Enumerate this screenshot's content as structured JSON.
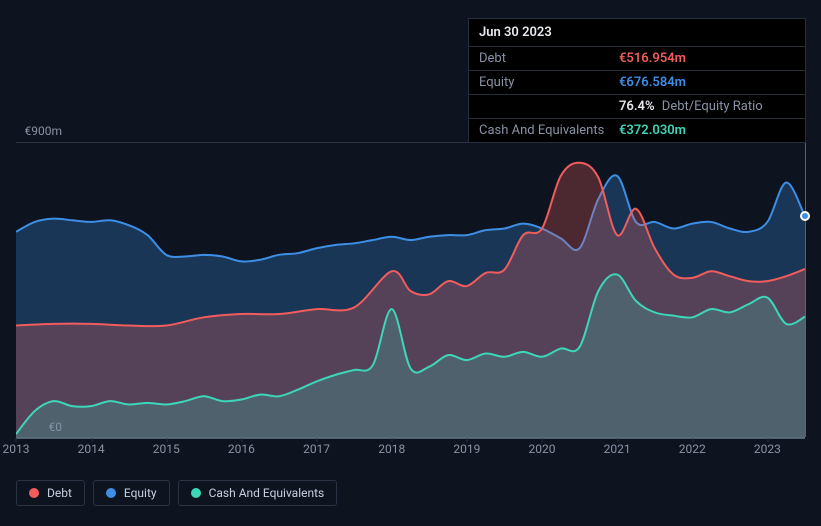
{
  "tooltip": {
    "date": "Jun 30 2023",
    "rows": [
      {
        "label": "Debt",
        "value": "€516.954m",
        "cls": "debt"
      },
      {
        "label": "Equity",
        "value": "€676.584m",
        "cls": "equity"
      },
      {
        "label": "",
        "value": "76.4%",
        "cls": "ratio",
        "suffix": "Debt/Equity Ratio"
      },
      {
        "label": "Cash And Equivalents",
        "value": "€372.030m",
        "cls": "cash"
      }
    ]
  },
  "chart": {
    "type": "area",
    "background_color": "#0d1420",
    "grid_color": "#2a3244",
    "ylim": [
      0,
      900
    ],
    "y_ticks": [
      {
        "v": 900,
        "label": "€900m"
      },
      {
        "v": 0,
        "label": "€0"
      }
    ],
    "x_years": [
      2013,
      2014,
      2015,
      2016,
      2017,
      2018,
      2019,
      2020,
      2021,
      2022,
      2023
    ],
    "x_range": [
      2013,
      2023.5
    ],
    "hover_x": 2023.5,
    "hover_dot": {
      "series": "equity",
      "y": 676.584
    },
    "series": [
      {
        "key": "equity",
        "label": "Equity",
        "color": "#3d8fe6",
        "fill_opacity": 0.28,
        "points": [
          [
            2013,
            630
          ],
          [
            2013.25,
            660
          ],
          [
            2013.5,
            670
          ],
          [
            2013.75,
            665
          ],
          [
            2014,
            660
          ],
          [
            2014.25,
            665
          ],
          [
            2014.5,
            650
          ],
          [
            2014.75,
            620
          ],
          [
            2015,
            560
          ],
          [
            2015.25,
            555
          ],
          [
            2015.5,
            560
          ],
          [
            2015.75,
            555
          ],
          [
            2016,
            540
          ],
          [
            2016.25,
            545
          ],
          [
            2016.5,
            560
          ],
          [
            2016.75,
            565
          ],
          [
            2017,
            580
          ],
          [
            2017.25,
            590
          ],
          [
            2017.5,
            595
          ],
          [
            2017.75,
            605
          ],
          [
            2018,
            615
          ],
          [
            2018.25,
            605
          ],
          [
            2018.5,
            615
          ],
          [
            2018.75,
            620
          ],
          [
            2019,
            620
          ],
          [
            2019.25,
            635
          ],
          [
            2019.5,
            640
          ],
          [
            2019.75,
            655
          ],
          [
            2020,
            640
          ],
          [
            2020.25,
            610
          ],
          [
            2020.5,
            580
          ],
          [
            2020.75,
            730
          ],
          [
            2021,
            800
          ],
          [
            2021.25,
            660
          ],
          [
            2021.5,
            660
          ],
          [
            2021.75,
            640
          ],
          [
            2022,
            655
          ],
          [
            2022.25,
            660
          ],
          [
            2022.5,
            640
          ],
          [
            2022.75,
            630
          ],
          [
            2023,
            660
          ],
          [
            2023.25,
            780
          ],
          [
            2023.5,
            676.584
          ]
        ]
      },
      {
        "key": "debt",
        "label": "Debt",
        "color": "#f15c5c",
        "fill_opacity": 0.28,
        "points": [
          [
            2013,
            345
          ],
          [
            2013.5,
            350
          ],
          [
            2014,
            350
          ],
          [
            2014.5,
            345
          ],
          [
            2015,
            345
          ],
          [
            2015.5,
            370
          ],
          [
            2016,
            380
          ],
          [
            2016.5,
            380
          ],
          [
            2017,
            395
          ],
          [
            2017.5,
            400
          ],
          [
            2018,
            510
          ],
          [
            2018.25,
            450
          ],
          [
            2018.5,
            440
          ],
          [
            2018.75,
            480
          ],
          [
            2019,
            465
          ],
          [
            2019.25,
            505
          ],
          [
            2019.5,
            515
          ],
          [
            2019.75,
            620
          ],
          [
            2020,
            640
          ],
          [
            2020.25,
            800
          ],
          [
            2020.5,
            840
          ],
          [
            2020.75,
            795
          ],
          [
            2021,
            620
          ],
          [
            2021.25,
            700
          ],
          [
            2021.5,
            580
          ],
          [
            2021.75,
            500
          ],
          [
            2022,
            490
          ],
          [
            2022.25,
            510
          ],
          [
            2022.5,
            495
          ],
          [
            2022.75,
            480
          ],
          [
            2023,
            480
          ],
          [
            2023.25,
            495
          ],
          [
            2023.5,
            516.954
          ]
        ]
      },
      {
        "key": "cash",
        "label": "Cash And Equivalents",
        "color": "#3dd6b8",
        "fill_opacity": 0.22,
        "points": [
          [
            2013,
            15
          ],
          [
            2013.25,
            85
          ],
          [
            2013.5,
            115
          ],
          [
            2013.75,
            100
          ],
          [
            2014,
            100
          ],
          [
            2014.25,
            115
          ],
          [
            2014.5,
            105
          ],
          [
            2014.75,
            110
          ],
          [
            2015,
            105
          ],
          [
            2015.25,
            115
          ],
          [
            2015.5,
            130
          ],
          [
            2015.75,
            115
          ],
          [
            2016,
            120
          ],
          [
            2016.25,
            135
          ],
          [
            2016.5,
            130
          ],
          [
            2016.75,
            150
          ],
          [
            2017,
            175
          ],
          [
            2017.25,
            195
          ],
          [
            2017.5,
            210
          ],
          [
            2017.75,
            225
          ],
          [
            2018,
            395
          ],
          [
            2018.25,
            215
          ],
          [
            2018.5,
            220
          ],
          [
            2018.75,
            255
          ],
          [
            2019,
            240
          ],
          [
            2019.25,
            260
          ],
          [
            2019.5,
            250
          ],
          [
            2019.75,
            265
          ],
          [
            2020,
            250
          ],
          [
            2020.25,
            275
          ],
          [
            2020.5,
            280
          ],
          [
            2020.75,
            450
          ],
          [
            2021,
            500
          ],
          [
            2021.25,
            420
          ],
          [
            2021.5,
            385
          ],
          [
            2021.75,
            375
          ],
          [
            2022,
            370
          ],
          [
            2022.25,
            395
          ],
          [
            2022.5,
            385
          ],
          [
            2022.75,
            410
          ],
          [
            2023,
            430
          ],
          [
            2023.25,
            350
          ],
          [
            2023.5,
            372.03
          ]
        ]
      }
    ],
    "legend": [
      {
        "key": "debt",
        "label": "Debt",
        "color": "#f15c5c"
      },
      {
        "key": "equity",
        "label": "Equity",
        "color": "#3d8fe6"
      },
      {
        "key": "cash",
        "label": "Cash And Equivalents",
        "color": "#3dd6b8"
      }
    ]
  }
}
